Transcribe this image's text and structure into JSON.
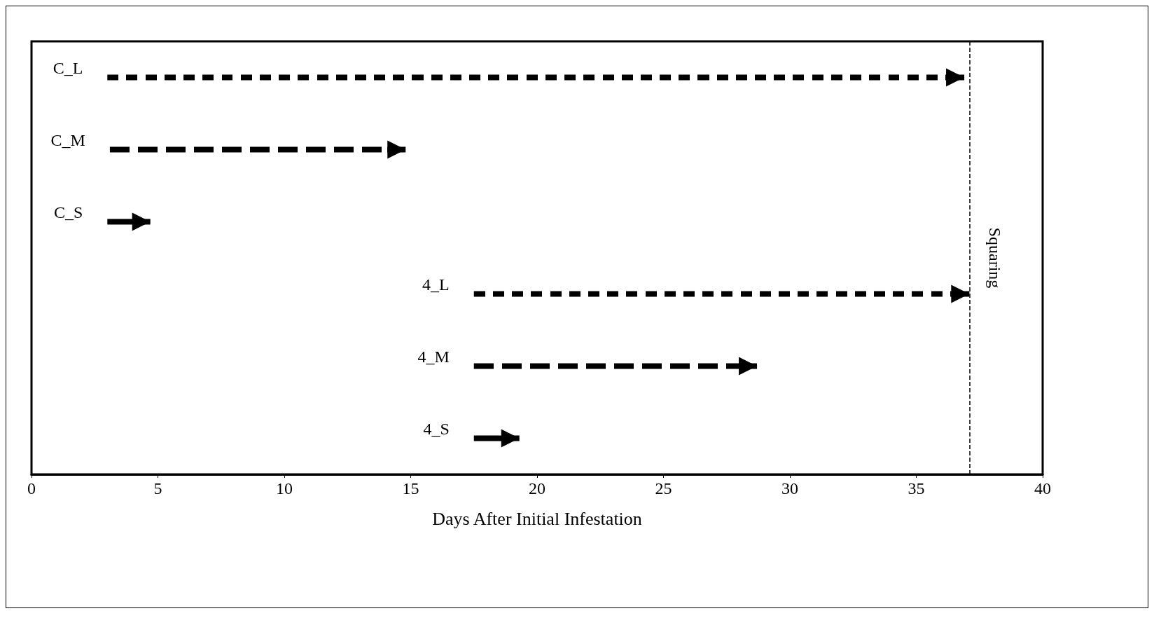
{
  "chart_data": {
    "type": "bar",
    "orientation": "horizontal",
    "xlabel": "Days After Initial Infestation",
    "categories": [
      "C_L",
      "C_M",
      "C_S",
      "4_L",
      "4_M",
      "4_S"
    ],
    "series": [
      {
        "color": "#000000",
        "line_style": "dotted",
        "base": [
          3.0,
          null,
          null,
          17.5,
          null,
          null
        ],
        "values": [
          33.9,
          null,
          null,
          19.6,
          null,
          null
        ]
      },
      {
        "color": "#000000",
        "line_style": "dashed",
        "base": [
          null,
          3.1,
          null,
          null,
          17.5,
          null
        ],
        "values": [
          null,
          11.7,
          null,
          null,
          11.2,
          null
        ]
      },
      {
        "color": "#000000",
        "line_style": "solid",
        "base": [
          null,
          null,
          3.0,
          null,
          null,
          17.5
        ],
        "values": [
          null,
          null,
          1.7,
          null,
          null,
          1.8
        ]
      }
    ],
    "xlim": [
      0,
      40
    ],
    "xticks": [
      0,
      5,
      10,
      15,
      20,
      25,
      30,
      35,
      40
    ],
    "tick_labels": "x",
    "grid": false,
    "ref_lines": [
      {
        "axis": "x",
        "value": 37.1,
        "label": "Squaring",
        "color": "#000000",
        "line_style": "dashed"
      }
    ]
  }
}
